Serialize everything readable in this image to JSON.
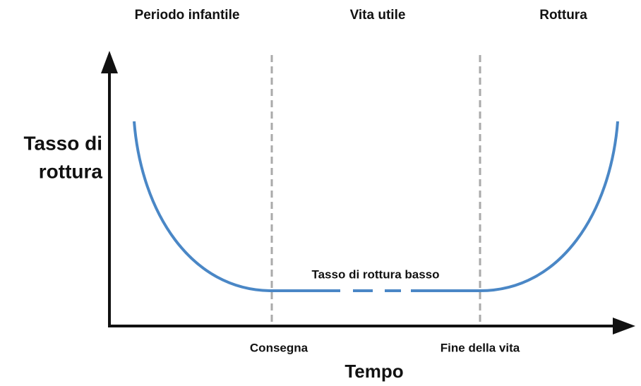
{
  "phases": [
    "Periodo infantile",
    "Vita utile",
    "Rottura"
  ],
  "y_axis_label": [
    "Tasso di",
    "rottura"
  ],
  "x_axis_label": "Tempo",
  "annotation": "Tasso di rottura basso",
  "milestones": [
    "Consegna",
    "Fine della vita"
  ]
}
